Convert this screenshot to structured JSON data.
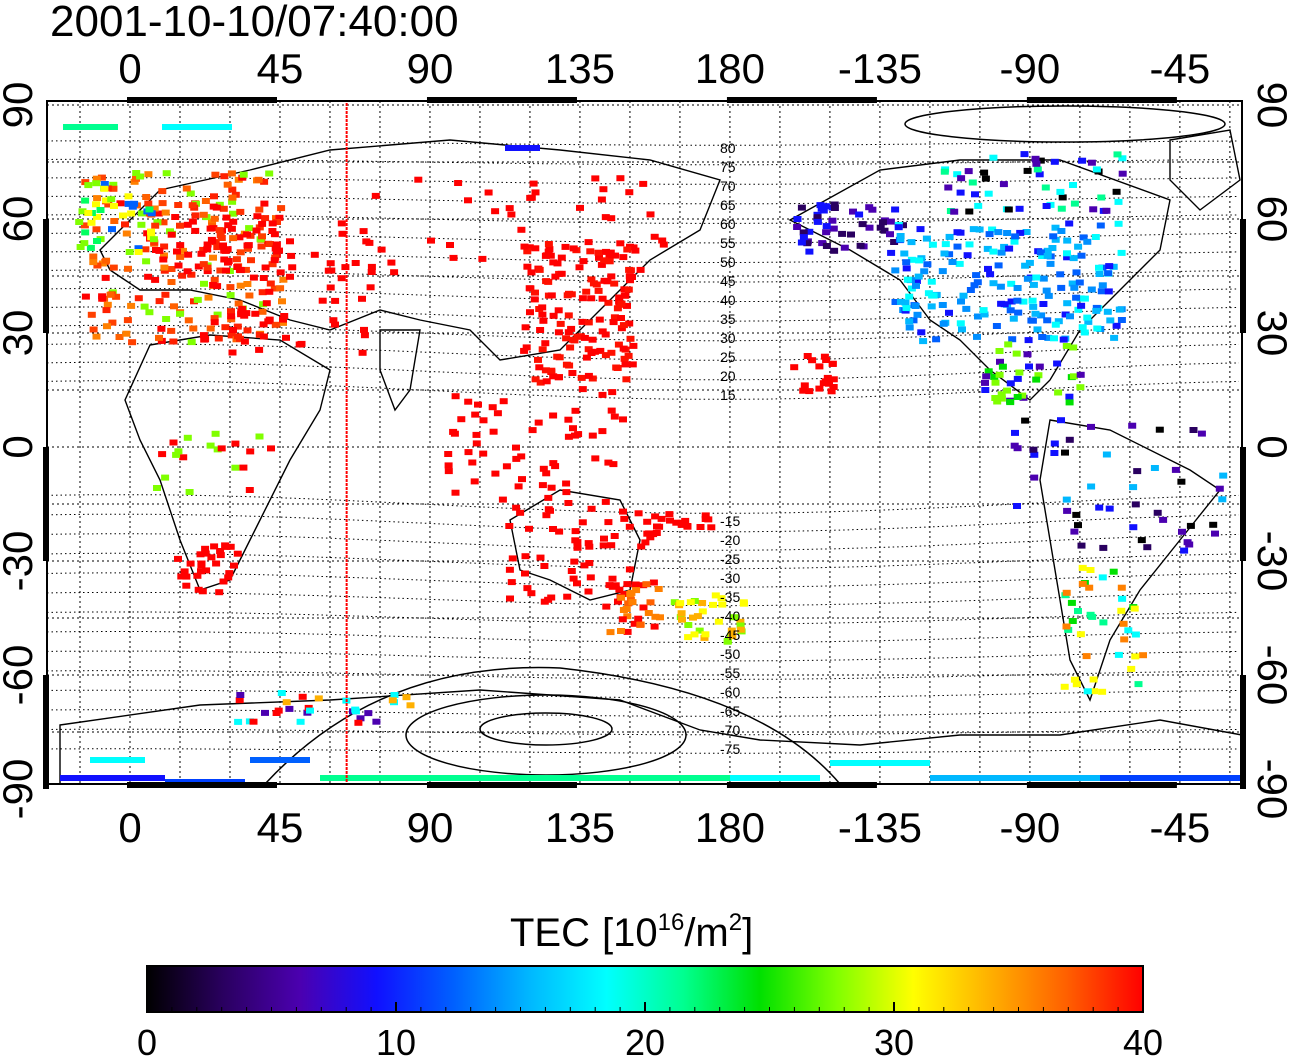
{
  "timestamp": "2001-10-10/07:40:00",
  "map": {
    "lon_ticks": [
      "0",
      "45",
      "90",
      "135",
      "180",
      "-135",
      "-90",
      "-45"
    ],
    "lat_ticks_left": [
      "90",
      "60",
      "30",
      "0",
      "-30",
      "-60",
      "-90"
    ],
    "lat_ticks_right": [
      "90",
      "60",
      "30",
      "0",
      "-30",
      "-60",
      "-90"
    ],
    "contour_labels": [
      "80",
      "75",
      "70",
      "65",
      "60",
      "55",
      "50",
      "45",
      "40",
      "35",
      "30",
      "25",
      "20",
      "15",
      "-15",
      "-20",
      "-25",
      "-30",
      "-35",
      "-40",
      "-45",
      "-50",
      "-55",
      "-60",
      "-65",
      "-70",
      "-75"
    ],
    "marker_longitude": 65
  },
  "colorbar": {
    "title": "TEC",
    "unit_base": "[10",
    "unit_exp": "16",
    "unit_mid": "/m",
    "unit_exp2": "2",
    "unit_close": "]",
    "min": 0,
    "max": 40,
    "ticks": [
      "0",
      "10",
      "20",
      "30",
      "40"
    ],
    "colors": [
      "#000000",
      "#2a0060",
      "#4b00b0",
      "#1010ff",
      "#0060ff",
      "#00b8ff",
      "#00ffff",
      "#00ff90",
      "#00e000",
      "#80ff00",
      "#ffff00",
      "#ffb000",
      "#ff6000",
      "#ff0000"
    ]
  }
}
